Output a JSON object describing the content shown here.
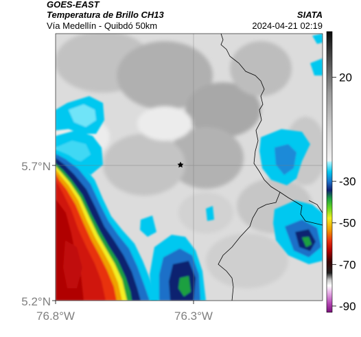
{
  "header": {
    "title": "GOES-EAST",
    "subtitle": "Temperatura de Brillo CH13",
    "route": "Vía Medellín - Quibdó 50km",
    "organization": "SIATA",
    "timestamp": "2024-04-21 02:19"
  },
  "axes": {
    "lat_ticks": [
      {
        "value": 5.7,
        "label": "5.7°N"
      },
      {
        "value": 5.2,
        "label": "5.2°N"
      }
    ],
    "lon_ticks": [
      {
        "value": -76.8,
        "label": "76.8°W"
      },
      {
        "value": -76.3,
        "label": "76.3°W"
      }
    ]
  },
  "colorbar": {
    "ticks": [
      {
        "value": 20,
        "label": "20"
      },
      {
        "value": -30,
        "label": "-30"
      },
      {
        "value": -50,
        "label": "-50"
      },
      {
        "value": -70,
        "label": "-70"
      },
      {
        "value": -90,
        "label": "-90"
      }
    ],
    "range": [
      -93,
      42
    ]
  },
  "markers": {
    "location_symbol": "star-icon"
  },
  "palette": {
    "cold_cloud": "#00c8f0",
    "deep_blue": "#1430a0",
    "red": "#e01010",
    "orange": "#f07800",
    "border": "#000000",
    "grid": "#7a7a7a"
  }
}
